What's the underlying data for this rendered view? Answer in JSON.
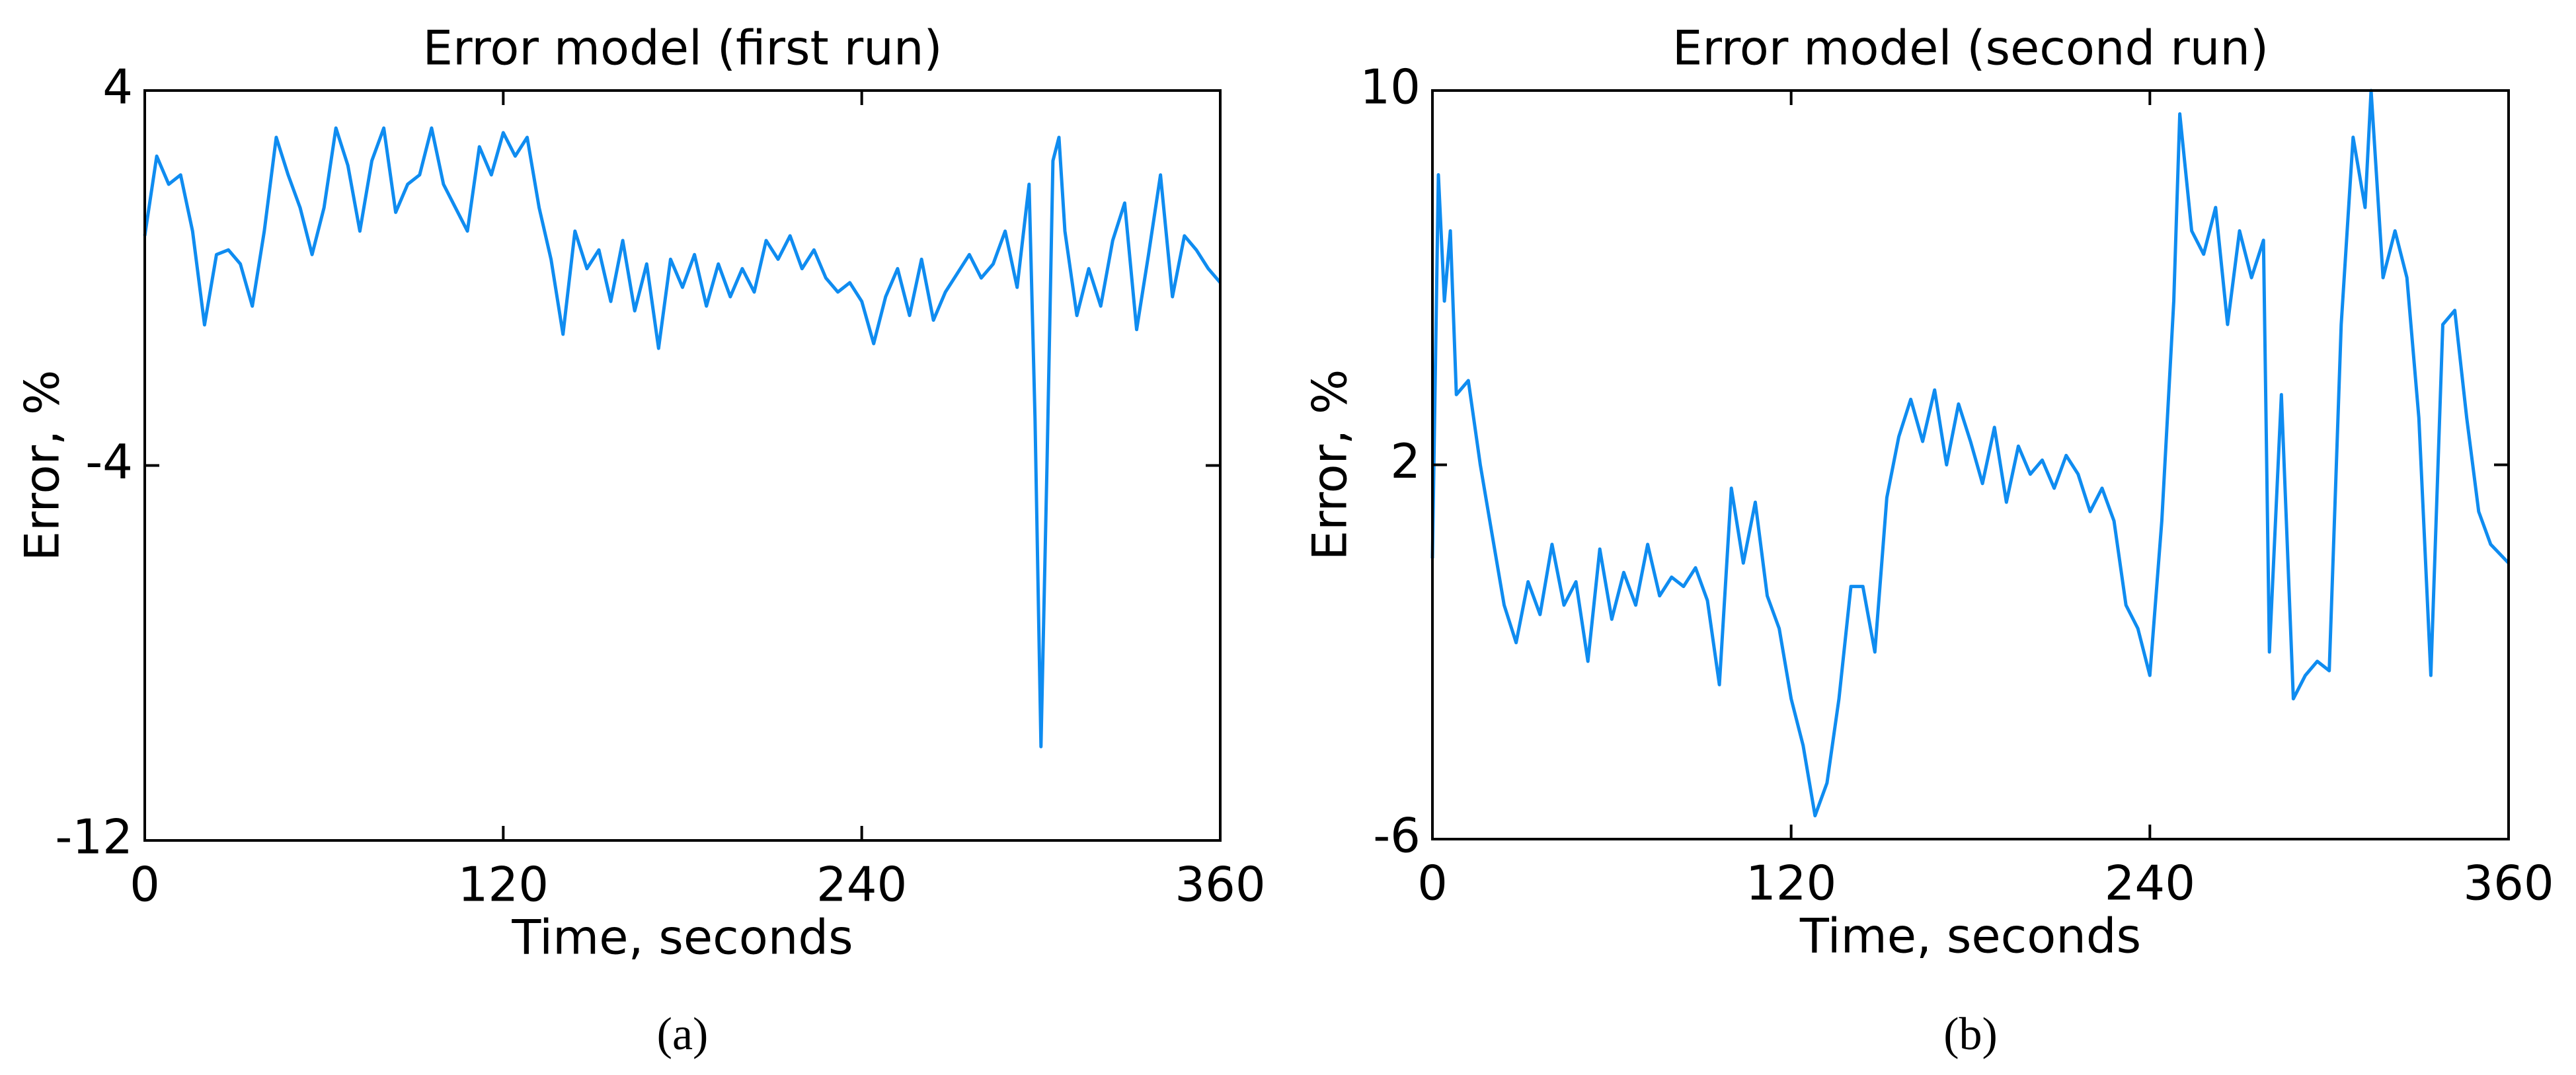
{
  "chart_data": [
    {
      "type": "line",
      "title": "Error model (first run)",
      "xlabel": "Time, seconds",
      "ylabel": "Error, %",
      "caption": "(a)",
      "color": "#0f8cf0",
      "x": [
        0,
        4,
        8,
        12,
        16,
        20,
        24,
        28,
        32,
        36,
        40,
        44,
        48,
        52,
        56,
        60,
        64,
        68,
        72,
        76,
        80,
        84,
        88,
        92,
        96,
        100,
        104,
        108,
        112,
        116,
        120,
        124,
        128,
        132,
        136,
        140,
        144,
        148,
        152,
        156,
        160,
        164,
        168,
        172,
        176,
        180,
        184,
        188,
        192,
        196,
        200,
        204,
        208,
        212,
        216,
        220,
        224,
        228,
        232,
        236,
        240,
        244,
        248,
        252,
        256,
        260,
        264,
        268,
        272,
        276,
        280,
        284,
        288,
        292,
        296,
        298,
        300,
        302,
        304,
        306,
        308,
        312,
        316,
        320,
        324,
        328,
        332,
        336,
        340,
        344,
        348,
        352,
        356,
        360
      ],
      "values": [
        0.9,
        2.6,
        2.0,
        2.2,
        1.0,
        -1.0,
        0.5,
        0.6,
        0.3,
        -0.6,
        1.0,
        3.0,
        2.2,
        1.5,
        0.5,
        1.5,
        3.2,
        2.4,
        1.0,
        2.5,
        3.2,
        1.4,
        2.0,
        2.2,
        3.2,
        2.0,
        1.5,
        1.0,
        2.8,
        2.2,
        3.1,
        2.6,
        3.0,
        1.5,
        0.4,
        -1.2,
        1.0,
        0.2,
        0.6,
        -0.5,
        0.8,
        -0.7,
        0.3,
        -1.5,
        0.4,
        -0.2,
        0.5,
        -0.6,
        0.3,
        -0.4,
        0.2,
        -0.3,
        0.8,
        0.4,
        0.9,
        0.2,
        0.6,
        0.0,
        -0.3,
        -0.1,
        -0.5,
        -1.4,
        -0.4,
        0.2,
        -0.8,
        0.4,
        -0.9,
        -0.3,
        0.1,
        0.5,
        0.0,
        0.3,
        1.0,
        -0.2,
        2.0,
        -3.0,
        -10.0,
        -4.0,
        2.5,
        3.0,
        1.0,
        -0.8,
        0.2,
        -0.6,
        0.8,
        1.6,
        -1.1,
        0.5,
        2.2,
        -0.4,
        0.9,
        0.6,
        0.2,
        -0.1
      ],
      "xlim": [
        0,
        360
      ],
      "xticks": [
        0,
        120,
        240,
        360
      ],
      "ylim": [
        -12,
        4
      ],
      "yticks": [
        -12,
        -4,
        4
      ]
    },
    {
      "type": "line",
      "title": "Error model (second run)",
      "xlabel": "Time, seconds",
      "ylabel": "Error, %",
      "caption": "(b)",
      "color": "#0f8cf0",
      "x": [
        0,
        2,
        4,
        6,
        8,
        12,
        16,
        20,
        24,
        28,
        32,
        36,
        40,
        44,
        48,
        52,
        56,
        60,
        64,
        68,
        72,
        76,
        80,
        84,
        88,
        92,
        96,
        100,
        104,
        108,
        112,
        116,
        120,
        124,
        128,
        132,
        136,
        140,
        144,
        148,
        152,
        156,
        160,
        164,
        168,
        172,
        176,
        180,
        184,
        188,
        192,
        196,
        200,
        204,
        208,
        212,
        216,
        220,
        224,
        228,
        232,
        236,
        240,
        244,
        248,
        250,
        254,
        258,
        262,
        266,
        270,
        274,
        278,
        280,
        284,
        288,
        292,
        296,
        300,
        304,
        308,
        312,
        314,
        318,
        322,
        326,
        330,
        334,
        338,
        342,
        346,
        350,
        354,
        360
      ],
      "values": [
        0.0,
        8.2,
        5.5,
        7.0,
        3.5,
        3.8,
        2.0,
        0.5,
        -1.0,
        -1.8,
        -0.5,
        -1.2,
        0.3,
        -1.0,
        -0.5,
        -2.2,
        0.2,
        -1.3,
        -0.3,
        -1.0,
        0.3,
        -0.8,
        -0.4,
        -0.6,
        -0.2,
        -0.9,
        -2.7,
        1.5,
        -0.1,
        1.2,
        -0.8,
        -1.5,
        -3.0,
        -4.0,
        -5.5,
        -4.8,
        -3.0,
        -0.6,
        -0.6,
        -2.0,
        1.3,
        2.6,
        3.4,
        2.5,
        3.6,
        2.0,
        3.3,
        2.5,
        1.6,
        2.8,
        1.2,
        2.4,
        1.8,
        2.1,
        1.5,
        2.2,
        1.8,
        1.0,
        1.5,
        0.8,
        -1.0,
        -1.5,
        -2.5,
        0.8,
        5.5,
        9.5,
        7.0,
        6.5,
        7.5,
        5.0,
        7.0,
        6.0,
        6.8,
        -2.0,
        3.5,
        -3.0,
        -2.5,
        -2.2,
        -2.4,
        5.0,
        9.0,
        7.5,
        10.0,
        6.0,
        7.0,
        6.0,
        3.0,
        -2.5,
        5.0,
        5.3,
        3.0,
        1.0,
        0.3,
        -0.1
      ],
      "xlim": [
        0,
        360
      ],
      "xticks": [
        0,
        120,
        240,
        360
      ],
      "ylim": [
        -6,
        10
      ],
      "yticks": [
        -6,
        2,
        10
      ]
    }
  ]
}
